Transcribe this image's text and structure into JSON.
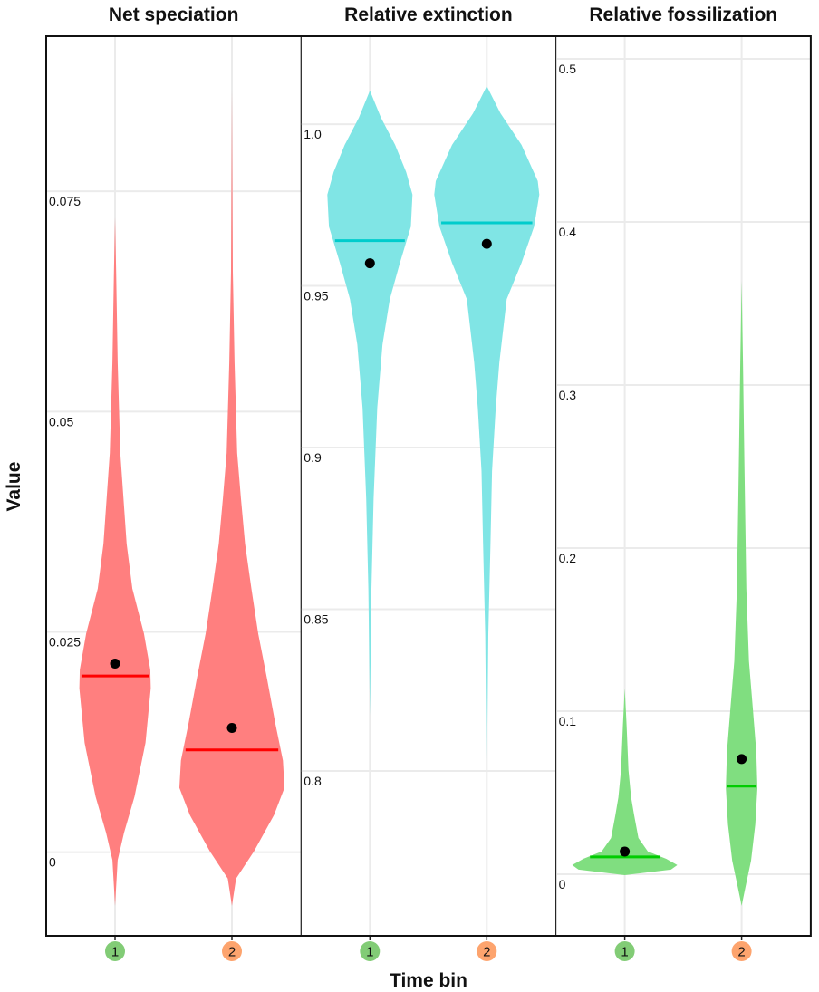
{
  "chart_data": {
    "type": "violin",
    "xlabel": "Time bin",
    "ylabel": "Value",
    "x_categories": [
      "1",
      "2"
    ],
    "x_category_colors": [
      "#82CC76",
      "#FDA46E"
    ],
    "grid": true,
    "panels": [
      {
        "title": "Net speciation",
        "ylim": [
          -0.0095,
          0.0926
        ],
        "yticks": [
          0,
          0.025,
          0.05,
          0.075
        ],
        "ytick_labels": [
          "0",
          "0.025",
          "0.05",
          "0.075"
        ],
        "fill_color": "#FF7F7F",
        "line_color": "#FF0000",
        "violins": [
          {
            "category": "1",
            "mean": 0.0214,
            "median": 0.02,
            "density": [
              [
                -0.0061,
                0
              ],
              [
                -0.0009,
                0.05
              ],
              [
                0.0022,
                0.17
              ],
              [
                0.0063,
                0.37
              ],
              [
                0.0124,
                0.58
              ],
              [
                0.0186,
                0.68
              ],
              [
                0.0207,
                0.67
              ],
              [
                0.0248,
                0.55
              ],
              [
                0.0299,
                0.33
              ],
              [
                0.035,
                0.22
              ],
              [
                0.0453,
                0.1
              ],
              [
                0.0556,
                0.05
              ],
              [
                0.0659,
                0.02
              ],
              [
                0.072,
                0
              ]
            ]
          },
          {
            "category": "2",
            "mean": 0.0141,
            "median": 0.0116,
            "density": [
              [
                -0.0061,
                0
              ],
              [
                -0.003,
                0.08
              ],
              [
                0.0001,
                0.42
              ],
              [
                0.0042,
                0.8
              ],
              [
                0.0073,
                1
              ],
              [
                0.0104,
                0.97
              ],
              [
                0.0145,
                0.83
              ],
              [
                0.0196,
                0.67
              ],
              [
                0.0248,
                0.5
              ],
              [
                0.0299,
                0.37
              ],
              [
                0.035,
                0.25
              ],
              [
                0.0402,
                0.17
              ],
              [
                0.0453,
                0.1
              ],
              [
                0.0556,
                0.05
              ],
              [
                0.0659,
                0.017
              ],
              [
                0.0864,
                0
              ]
            ]
          }
        ]
      },
      {
        "title": "Relative extinction",
        "ylim": [
          0.749,
          1.0272
        ],
        "yticks": [
          0.8,
          0.85,
          0.9,
          0.95,
          1.0
        ],
        "ytick_labels": [
          "0.8",
          "0.85",
          "0.9",
          "0.95",
          "1.0"
        ],
        "fill_color": "#80E5E5",
        "line_color": "#00CCCC",
        "violins": [
          {
            "category": "1",
            "mean": 0.957,
            "median": 0.964,
            "density": [
              [
                0.8171,
                0
              ],
              [
                0.8563,
                0.03
              ],
              [
                0.8843,
                0.07
              ],
              [
                0.9123,
                0.14
              ],
              [
                0.9319,
                0.24
              ],
              [
                0.9459,
                0.38
              ],
              [
                0.9571,
                0.57
              ],
              [
                0.9683,
                0.78
              ],
              [
                0.9782,
                0.81
              ],
              [
                0.9852,
                0.69
              ],
              [
                0.9936,
                0.48
              ],
              [
                1.002,
                0.21
              ],
              [
                1.0104,
                0
              ]
            ]
          },
          {
            "category": "2",
            "mean": 0.963,
            "median": 0.9695,
            "density": [
              [
                0.7947,
                0
              ],
              [
                0.8423,
                0.03
              ],
              [
                0.8703,
                0.07
              ],
              [
                0.8927,
                0.1
              ],
              [
                0.9123,
                0.17
              ],
              [
                0.9263,
                0.24
              ],
              [
                0.9459,
                0.38
              ],
              [
                0.9571,
                0.66
              ],
              [
                0.9683,
                0.9
              ],
              [
                0.9782,
                1
              ],
              [
                0.9824,
                0.97
              ],
              [
                0.9936,
                0.66
              ],
              [
                1.0034,
                0.26
              ],
              [
                1.0118,
                0
              ]
            ]
          }
        ]
      },
      {
        "title": "Relative fossilization",
        "ylim": [
          -0.0378,
          0.5139
        ],
        "yticks": [
          0,
          0.1,
          0.2,
          0.3,
          0.4,
          0.5
        ],
        "ytick_labels": [
          "0",
          "0.1",
          "0.2",
          "0.3",
          "0.4",
          "0.5"
        ],
        "fill_color": "#80DE80",
        "line_color": "#00CC00",
        "violins": [
          {
            "category": "1",
            "mean": 0.0139,
            "median": 0.0106,
            "density": [
              [
                -0.0006,
                0
              ],
              [
                0.0028,
                0.88
              ],
              [
                0.0056,
                1
              ],
              [
                0.0094,
                0.79
              ],
              [
                0.0139,
                0.44
              ],
              [
                0.0222,
                0.26
              ],
              [
                0.0361,
                0.18
              ],
              [
                0.0472,
                0.12
              ],
              [
                0.0639,
                0.07
              ],
              [
                0.0917,
                0.035
              ],
              [
                0.1139,
                0
              ]
            ]
          },
          {
            "category": "2",
            "mean": 0.0706,
            "median": 0.054,
            "density": [
              [
                -0.0194,
                0
              ],
              [
                -0.0083,
                0.07
              ],
              [
                0.0083,
                0.18
              ],
              [
                0.0306,
                0.26
              ],
              [
                0.0528,
                0.3
              ],
              [
                0.075,
                0.28
              ],
              [
                0.1028,
                0.21
              ],
              [
                0.1306,
                0.14
              ],
              [
                0.175,
                0.09
              ],
              [
                0.2583,
                0.05
              ],
              [
                0.3139,
                0.026
              ],
              [
                0.3639,
                0
              ]
            ]
          }
        ]
      }
    ]
  }
}
